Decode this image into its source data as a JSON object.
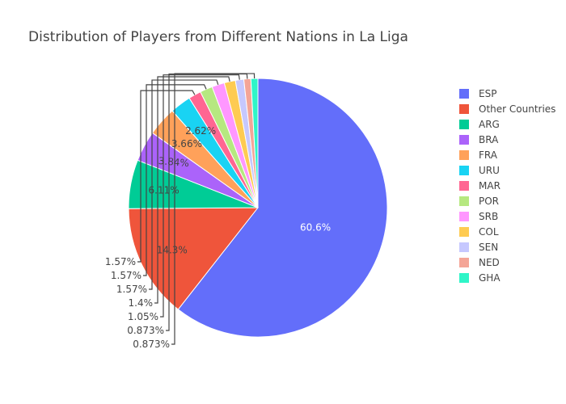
{
  "chart_data": {
    "type": "pie",
    "title": "Distribution of Players from Different Nations in La Liga",
    "slices": [
      {
        "label": "ESP",
        "value": 60.6,
        "text": "60.6%",
        "color": "#636efa",
        "text_color": "#ffffff"
      },
      {
        "label": "Other Countries",
        "value": 14.3,
        "text": "14.3%",
        "color": "#ef553b",
        "text_color": "#444444"
      },
      {
        "label": "ARG",
        "value": 6.11,
        "text": "6.11%",
        "color": "#00cc96",
        "text_color": "#444444"
      },
      {
        "label": "BRA",
        "value": 3.84,
        "text": "3.84%",
        "color": "#ab63fa",
        "text_color": "#444444"
      },
      {
        "label": "FRA",
        "value": 3.66,
        "text": "3.66%",
        "color": "#ffa15a",
        "text_color": "#444444"
      },
      {
        "label": "URU",
        "value": 2.62,
        "text": "2.62%",
        "color": "#19d3f3",
        "text_color": "#444444"
      },
      {
        "label": "MAR",
        "value": 1.57,
        "text": "1.57%",
        "color": "#ff6692",
        "text_color": "#444444"
      },
      {
        "label": "POR",
        "value": 1.57,
        "text": "1.57%",
        "color": "#b6e880",
        "text_color": "#444444"
      },
      {
        "label": "SRB",
        "value": 1.57,
        "text": "1.57%",
        "color": "#ff97ff",
        "text_color": "#444444"
      },
      {
        "label": "COL",
        "value": 1.4,
        "text": "1.4%",
        "color": "#fecb52",
        "text_color": "#444444"
      },
      {
        "label": "SEN",
        "value": 1.05,
        "text": "1.05%",
        "color": "#c6c8ff",
        "text_color": "#444444"
      },
      {
        "label": "NED",
        "value": 0.873,
        "text": "0.873%",
        "color": "#f4a597",
        "text_color": "#444444"
      },
      {
        "label": "GHA",
        "value": 0.873,
        "text": "0.873%",
        "color": "#2ff5c8",
        "text_color": "#444444"
      }
    ],
    "legend_position": "top-right"
  }
}
